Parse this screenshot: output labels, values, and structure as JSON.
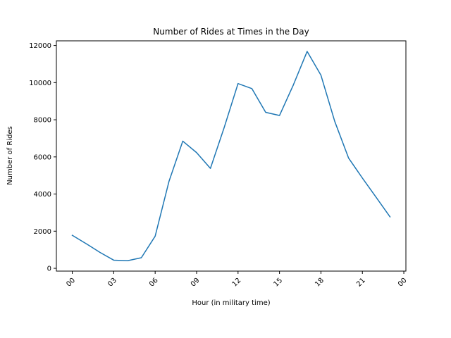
{
  "chart_data": {
    "type": "line",
    "title": "Number of Rides at Times in the Day",
    "xlabel": "Hour (in military time)",
    "ylabel": "Number of Rides",
    "x_ticks": [
      {
        "hour": 0,
        "label": "00"
      },
      {
        "hour": 3,
        "label": "03"
      },
      {
        "hour": 6,
        "label": "06"
      },
      {
        "hour": 9,
        "label": "09"
      },
      {
        "hour": 12,
        "label": "12"
      },
      {
        "hour": 15,
        "label": "15"
      },
      {
        "hour": 18,
        "label": "18"
      },
      {
        "hour": 21,
        "label": "21"
      },
      {
        "hour": 24,
        "label": "00"
      }
    ],
    "y_ticks": [
      0,
      2000,
      4000,
      6000,
      8000,
      10000,
      12000
    ],
    "xlim": [
      -1.15,
      24.15
    ],
    "ylim": [
      -150,
      12250
    ],
    "grid": false,
    "series": [
      {
        "color": "#1f77b4",
        "x": [
          0,
          1,
          2,
          3,
          4,
          5,
          6,
          7,
          8,
          9,
          10,
          11,
          12,
          13,
          14,
          15,
          16,
          17,
          18,
          19,
          20,
          21,
          22,
          23
        ],
        "y": [
          1780,
          1330,
          860,
          440,
          410,
          570,
          1730,
          4680,
          6850,
          6230,
          5380,
          7590,
          9950,
          9680,
          8400,
          8230,
          9870,
          11680,
          10400,
          7910,
          5940,
          4860,
          3820,
          2770
        ]
      }
    ]
  }
}
